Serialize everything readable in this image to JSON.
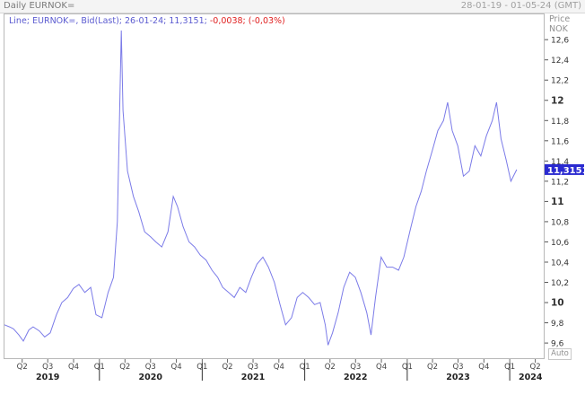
{
  "header": {
    "title": "Daily EURNOK=",
    "date_range": "28-01-19 - 01-05-24 (GMT)"
  },
  "legend": {
    "label": "Line; EURNOK=, Bid(Last); 26-01-24; 11,3151;",
    "change": "-0,0038; (-0,03%)"
  },
  "axis": {
    "price_label": "Price",
    "currency_label": "NOK",
    "auto_label": "Auto"
  },
  "colors": {
    "line": "#7b7be8",
    "last_tag_bg": "#2a2ad0",
    "change": "#e02020"
  },
  "chart_data": {
    "type": "line",
    "series": [
      {
        "last_value_label": "11,3151",
        "points": [
          [
            "2019-01-28",
            9.78
          ],
          [
            "2019-02-15",
            9.76
          ],
          [
            "2019-03-01",
            9.74
          ],
          [
            "2019-03-20",
            9.68
          ],
          [
            "2019-04-05",
            9.62
          ],
          [
            "2019-04-25",
            9.73
          ],
          [
            "2019-05-10",
            9.76
          ],
          [
            "2019-06-01",
            9.72
          ],
          [
            "2019-06-20",
            9.66
          ],
          [
            "2019-07-10",
            9.7
          ],
          [
            "2019-08-01",
            9.88
          ],
          [
            "2019-08-20",
            10.0
          ],
          [
            "2019-09-10",
            10.05
          ],
          [
            "2019-09-30",
            10.14
          ],
          [
            "2019-10-20",
            10.18
          ],
          [
            "2019-11-10",
            10.1
          ],
          [
            "2019-12-01",
            10.15
          ],
          [
            "2019-12-20",
            9.88
          ],
          [
            "2020-01-10",
            9.85
          ],
          [
            "2020-02-01",
            10.1
          ],
          [
            "2020-02-20",
            10.25
          ],
          [
            "2020-03-05",
            10.8
          ],
          [
            "2020-03-19",
            12.69
          ],
          [
            "2020-03-25",
            11.9
          ],
          [
            "2020-04-10",
            11.3
          ],
          [
            "2020-05-01",
            11.05
          ],
          [
            "2020-05-20",
            10.9
          ],
          [
            "2020-06-10",
            10.7
          ],
          [
            "2020-07-01",
            10.65
          ],
          [
            "2020-07-20",
            10.6
          ],
          [
            "2020-08-10",
            10.55
          ],
          [
            "2020-09-01",
            10.7
          ],
          [
            "2020-09-20",
            11.05
          ],
          [
            "2020-10-05",
            10.95
          ],
          [
            "2020-10-25",
            10.75
          ],
          [
            "2020-11-15",
            10.6
          ],
          [
            "2020-12-05",
            10.55
          ],
          [
            "2020-12-25",
            10.47
          ],
          [
            "2021-01-15",
            10.42
          ],
          [
            "2021-02-05",
            10.32
          ],
          [
            "2021-02-25",
            10.25
          ],
          [
            "2021-03-15",
            10.15
          ],
          [
            "2021-04-05",
            10.1
          ],
          [
            "2021-04-25",
            10.05
          ],
          [
            "2021-05-15",
            10.15
          ],
          [
            "2021-06-05",
            10.1
          ],
          [
            "2021-06-25",
            10.25
          ],
          [
            "2021-07-15",
            10.38
          ],
          [
            "2021-08-05",
            10.45
          ],
          [
            "2021-08-25",
            10.35
          ],
          [
            "2021-09-15",
            10.2
          ],
          [
            "2021-10-05",
            9.98
          ],
          [
            "2021-10-25",
            9.78
          ],
          [
            "2021-11-15",
            9.85
          ],
          [
            "2021-12-05",
            10.05
          ],
          [
            "2021-12-25",
            10.1
          ],
          [
            "2022-01-15",
            10.05
          ],
          [
            "2022-02-05",
            9.98
          ],
          [
            "2022-02-25",
            10.0
          ],
          [
            "2022-03-15",
            9.78
          ],
          [
            "2022-03-25",
            9.58
          ],
          [
            "2022-04-10",
            9.7
          ],
          [
            "2022-04-30",
            9.9
          ],
          [
            "2022-05-20",
            10.15
          ],
          [
            "2022-06-10",
            10.3
          ],
          [
            "2022-06-30",
            10.25
          ],
          [
            "2022-07-20",
            10.1
          ],
          [
            "2022-08-10",
            9.9
          ],
          [
            "2022-08-25",
            9.68
          ],
          [
            "2022-09-10",
            10.05
          ],
          [
            "2022-09-30",
            10.45
          ],
          [
            "2022-10-20",
            10.35
          ],
          [
            "2022-11-10",
            10.35
          ],
          [
            "2022-12-01",
            10.32
          ],
          [
            "2022-12-20",
            10.45
          ],
          [
            "2023-01-10",
            10.7
          ],
          [
            "2023-02-01",
            10.95
          ],
          [
            "2023-02-20",
            11.1
          ],
          [
            "2023-03-10",
            11.3
          ],
          [
            "2023-03-31",
            11.5
          ],
          [
            "2023-04-20",
            11.7
          ],
          [
            "2023-05-10",
            11.8
          ],
          [
            "2023-05-25",
            11.98
          ],
          [
            "2023-06-10",
            11.7
          ],
          [
            "2023-06-30",
            11.55
          ],
          [
            "2023-07-20",
            11.25
          ],
          [
            "2023-08-10",
            11.3
          ],
          [
            "2023-08-30",
            11.55
          ],
          [
            "2023-09-20",
            11.45
          ],
          [
            "2023-10-10",
            11.65
          ],
          [
            "2023-10-31",
            11.8
          ],
          [
            "2023-11-15",
            11.98
          ],
          [
            "2023-12-01",
            11.62
          ],
          [
            "2023-12-20",
            11.4
          ],
          [
            "2024-01-05",
            11.2
          ],
          [
            "2024-01-26",
            11.3151
          ]
        ]
      }
    ],
    "x_range": [
      "2019-01-28",
      "2024-05-01"
    ],
    "ylim": [
      9.45,
      12.85
    ],
    "y_ticks": [
      "9,6",
      "9,8",
      "10",
      "10,2",
      "10,4",
      "10,6",
      "10,8",
      "11",
      "11,2",
      "11,4",
      "11,6",
      "11,8",
      "12",
      "12,2",
      "12,4",
      "12,6"
    ],
    "x_ticks": [
      [
        "2019-04-01",
        "Q2"
      ],
      [
        "2019-07-01",
        "Q3"
      ],
      [
        "2019-10-01",
        "Q4"
      ],
      [
        "2020-01-01",
        "Q1"
      ],
      [
        "2020-04-01",
        "Q2"
      ],
      [
        "2020-07-01",
        "Q3"
      ],
      [
        "2020-10-01",
        "Q4"
      ],
      [
        "2021-01-01",
        "Q1"
      ],
      [
        "2021-04-01",
        "Q2"
      ],
      [
        "2021-07-01",
        "Q3"
      ],
      [
        "2021-10-01",
        "Q4"
      ],
      [
        "2022-01-01",
        "Q1"
      ],
      [
        "2022-04-01",
        "Q2"
      ],
      [
        "2022-07-01",
        "Q3"
      ],
      [
        "2022-10-01",
        "Q4"
      ],
      [
        "2023-01-01",
        "Q1"
      ],
      [
        "2023-04-01",
        "Q2"
      ],
      [
        "2023-07-01",
        "Q3"
      ],
      [
        "2023-10-01",
        "Q4"
      ],
      [
        "2024-01-01",
        "Q1"
      ],
      [
        "2024-04-01",
        "Q2"
      ]
    ],
    "year_labels": [
      [
        "2019-07-01",
        "2019"
      ],
      [
        "2020-07-01",
        "2020"
      ],
      [
        "2021-07-01",
        "2021"
      ],
      [
        "2022-07-01",
        "2022"
      ],
      [
        "2023-07-01",
        "2023"
      ],
      [
        "2024-03-15",
        "2024"
      ]
    ],
    "year_boundaries": [
      "2020-01-01",
      "2021-01-01",
      "2022-01-01",
      "2023-01-01",
      "2024-01-01"
    ],
    "grid": false
  }
}
